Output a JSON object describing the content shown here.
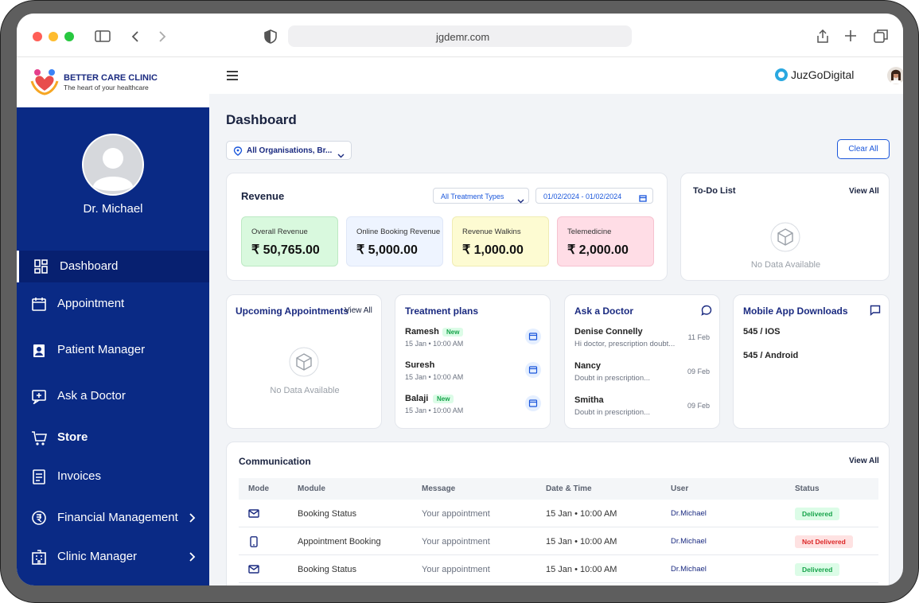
{
  "browser": {
    "url": "jgdemr.com"
  },
  "clinic": {
    "name": "BETTER CARE CLINIC",
    "tagline": "The heart of your healthcare"
  },
  "brand": "JuzGoDigital",
  "user": "Dr. Michael",
  "nav": [
    "Dashboard",
    "Appointment",
    "Patient Manager",
    "Ask a Doctor",
    "Store",
    "Invoices",
    "Financial Management",
    "Clinic Manager"
  ],
  "page": {
    "title": "Dashboard",
    "filter": "All Organisations, Br...",
    "clear": "Clear All"
  },
  "revenue": {
    "title": "Revenue",
    "treatment_filter": "All Treatment Types",
    "date_range": "01/02/2024 - 01/02/2024",
    "cards": [
      {
        "label": "Overall Revenue",
        "value": "₹ 50,765.00"
      },
      {
        "label": "Online Booking Revenue",
        "value": "₹ 5,000.00"
      },
      {
        "label": "Revenue Walkins",
        "value": "₹ 1,000.00"
      },
      {
        "label": "Telemedicine",
        "value": "₹ 2,000.00"
      }
    ]
  },
  "todo": {
    "title": "To-Do List",
    "view_all": "View All",
    "empty": "No Data Available"
  },
  "upcoming": {
    "title": "Upcoming Appointments",
    "view_all": "View All",
    "empty": "No Data Available"
  },
  "treatment": {
    "title": "Treatment plans",
    "items": [
      {
        "name": "Ramesh",
        "badge": "New",
        "time": "15 Jan • 10:00 AM"
      },
      {
        "name": "Suresh",
        "time": "15 Jan • 10:00 AM"
      },
      {
        "name": "Balaji",
        "badge": "New",
        "time": "15 Jan • 10:00 AM"
      }
    ]
  },
  "ask": {
    "title": "Ask a Doctor",
    "items": [
      {
        "name": "Denise Connelly",
        "message": "Hi doctor, prescription doubt...",
        "date": "11 Feb"
      },
      {
        "name": "Nancy",
        "message": "Doubt in prescription...",
        "date": "09 Feb"
      },
      {
        "name": "Smitha",
        "message": "Doubt in prescription...",
        "date": "09 Feb"
      }
    ]
  },
  "mobile": {
    "title": "Mobile App Downloads",
    "items": [
      "545 / IOS",
      "545 / Android"
    ]
  },
  "communication": {
    "title": "Communication",
    "view_all": "View All",
    "columns": [
      "Mode",
      "Module",
      "Message",
      "Date & Time",
      "User",
      "Status"
    ],
    "rows": [
      [
        "Booking Status",
        "Your appointment",
        "15 Jan • 10:00 AM",
        "Dr.Michael",
        "Delivered"
      ],
      [
        "Appointment Booking",
        "Your appointment",
        "15 Jan • 10:00 AM",
        "Dr.Michael",
        "Not Delivered"
      ],
      [
        "Booking Status",
        "Your appointment",
        "15 Jan • 10:00 AM",
        "Dr.Michael",
        "Delivered"
      ]
    ]
  }
}
